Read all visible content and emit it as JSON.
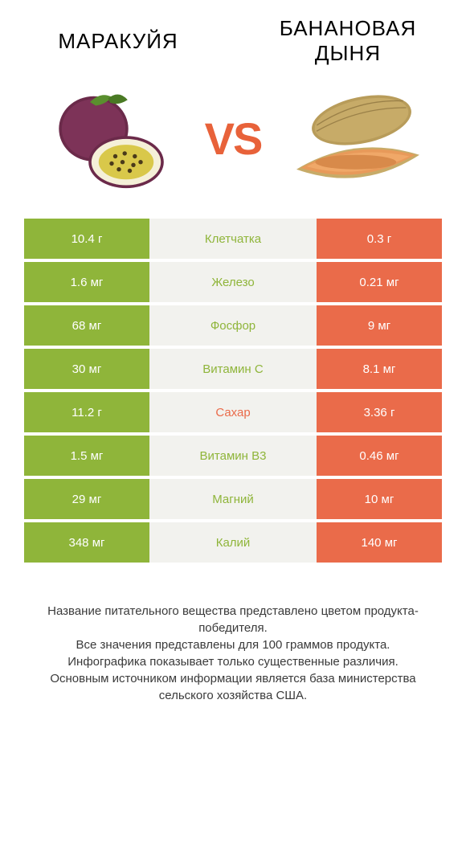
{
  "colors": {
    "left_product": "#8fb53a",
    "right_product": "#ea6b4a",
    "mid_bg": "#f2f2ee",
    "text_dark": "#3a3a3a"
  },
  "products": {
    "left": {
      "name": "MАРАКУЙЯ"
    },
    "right": {
      "name": "БАНАНОВАЯ ДЫНЯ"
    }
  },
  "vs_label": "VS",
  "rows": [
    {
      "left": "10.4 г",
      "label": "Клетчатка",
      "right": "0.3 г",
      "winner": "left"
    },
    {
      "left": "1.6 мг",
      "label": "Железо",
      "right": "0.21 мг",
      "winner": "left"
    },
    {
      "left": "68 мг",
      "label": "Фосфор",
      "right": "9 мг",
      "winner": "left"
    },
    {
      "left": "30 мг",
      "label": "Витамин C",
      "right": "8.1 мг",
      "winner": "left"
    },
    {
      "left": "11.2 г",
      "label": "Сахар",
      "right": "3.36 г",
      "winner": "right"
    },
    {
      "left": "1.5 мг",
      "label": "Витамин B3",
      "right": "0.46 мг",
      "winner": "left"
    },
    {
      "left": "29 мг",
      "label": "Магний",
      "right": "10 мг",
      "winner": "left"
    },
    {
      "left": "348 мг",
      "label": "Калий",
      "right": "140 мг",
      "winner": "left"
    }
  ],
  "footer": {
    "line1": "Название питательного вещества представлено цветом продукта-победителя.",
    "line2": "Все значения представлены для 100 граммов продукта.",
    "line3": "Инфографика показывает только существенные различия.",
    "line4": "Основным источником информации является база министерства сельского хозяйства США."
  }
}
